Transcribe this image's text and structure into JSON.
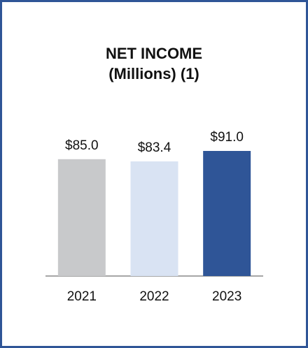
{
  "chart_data": {
    "type": "bar",
    "title": "NET INCOME",
    "subtitle": "(Millions) (1)",
    "categories": [
      "2021",
      "2022",
      "2023"
    ],
    "values": [
      85.0,
      83.4,
      91.0
    ],
    "value_labels": [
      "$85.0",
      "$83.4",
      "$91.0"
    ],
    "colors": [
      "#c8c9cb",
      "#d9e3f3",
      "#2f5597"
    ]
  }
}
